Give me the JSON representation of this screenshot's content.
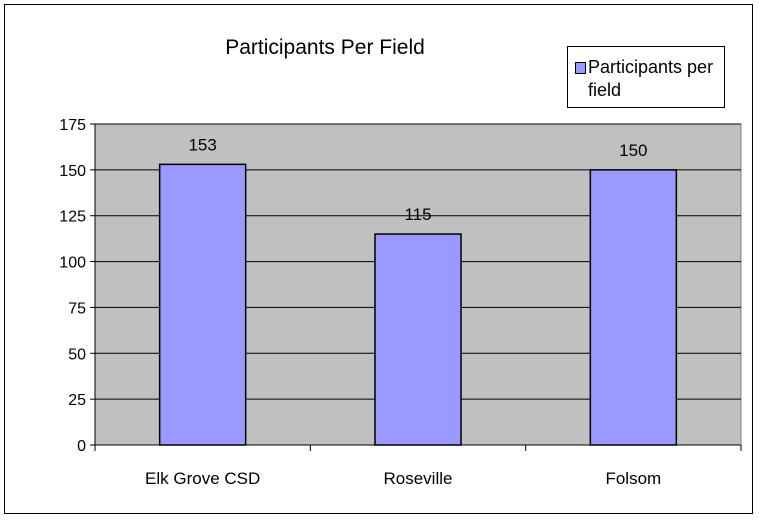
{
  "chart_data": {
    "type": "bar",
    "title": "Participants Per Field",
    "categories": [
      "Elk Grove CSD",
      "Roseville",
      "Folsom"
    ],
    "series": [
      {
        "name": "Participants per field",
        "values": [
          153,
          115,
          150
        ],
        "color": "#9999ff"
      }
    ],
    "data_labels": [
      "153",
      "115",
      "150"
    ],
    "yticks": [
      0,
      25,
      50,
      75,
      100,
      125,
      150,
      175
    ],
    "ylim": [
      0,
      175
    ],
    "grid": true,
    "plot_background": "#c0c0c0",
    "legend_position": "top-right"
  }
}
